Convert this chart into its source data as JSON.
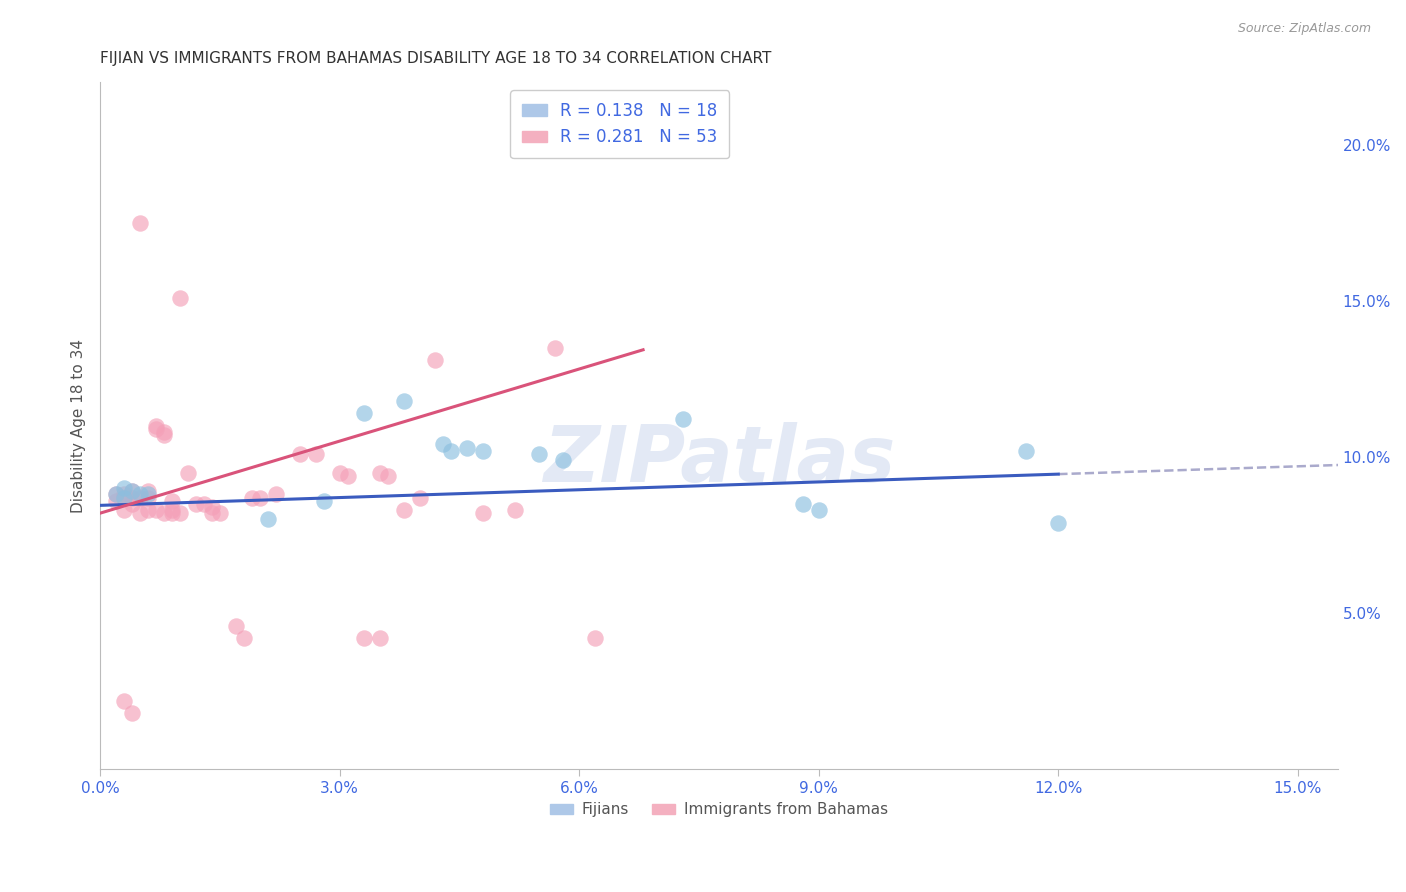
{
  "title": "FIJIAN VS IMMIGRANTS FROM BAHAMAS DISABILITY AGE 18 TO 34 CORRELATION CHART",
  "source": "Source: ZipAtlas.com",
  "ylabel": "Disability Age 18 to 34",
  "xlim": [
    0.0,
    0.155
  ],
  "ylim": [
    0.0,
    0.22
  ],
  "xtick_vals": [
    0.0,
    0.03,
    0.06,
    0.09,
    0.12,
    0.15
  ],
  "ytick_vals": [
    0.05,
    0.1,
    0.15,
    0.2
  ],
  "blue_scatter_color": "#8bbfdf",
  "pink_scatter_color": "#f4a0b8",
  "blue_line_color": "#3a5bbf",
  "pink_line_color": "#d9537a",
  "dash_line_color": "#aaaacc",
  "legend_label1": "Fijians",
  "legend_label2": "Immigrants from Bahamas",
  "watermark": "ZIPatlas",
  "background_color": "#ffffff",
  "grid_color": "#dddddd",
  "fijians_x": [
    0.002,
    0.003,
    0.003,
    0.004,
    0.005,
    0.006,
    0.021,
    0.028,
    0.033,
    0.038,
    0.043,
    0.044,
    0.046,
    0.048,
    0.055,
    0.058,
    0.073,
    0.088,
    0.09,
    0.116,
    0.12
  ],
  "fijians_y": [
    0.088,
    0.09,
    0.087,
    0.089,
    0.088,
    0.088,
    0.08,
    0.086,
    0.114,
    0.118,
    0.104,
    0.102,
    0.103,
    0.102,
    0.101,
    0.099,
    0.112,
    0.085,
    0.083,
    0.102,
    0.079
  ],
  "bahamas_x": [
    0.002,
    0.002,
    0.003,
    0.003,
    0.003,
    0.004,
    0.004,
    0.004,
    0.005,
    0.005,
    0.005,
    0.006,
    0.006,
    0.006,
    0.007,
    0.007,
    0.007,
    0.008,
    0.008,
    0.008,
    0.009,
    0.009,
    0.009,
    0.01,
    0.01,
    0.011,
    0.012,
    0.013,
    0.014,
    0.014,
    0.015,
    0.017,
    0.018,
    0.019,
    0.02,
    0.022,
    0.025,
    0.027,
    0.03,
    0.031,
    0.033,
    0.035,
    0.036,
    0.038,
    0.04,
    0.042,
    0.048,
    0.052,
    0.057,
    0.062,
    0.003,
    0.004,
    0.035
  ],
  "bahamas_y": [
    0.088,
    0.086,
    0.088,
    0.087,
    0.083,
    0.089,
    0.087,
    0.085,
    0.175,
    0.082,
    0.087,
    0.083,
    0.087,
    0.089,
    0.11,
    0.109,
    0.083,
    0.108,
    0.107,
    0.082,
    0.083,
    0.086,
    0.082,
    0.082,
    0.151,
    0.095,
    0.085,
    0.085,
    0.084,
    0.082,
    0.082,
    0.046,
    0.042,
    0.087,
    0.087,
    0.088,
    0.101,
    0.101,
    0.095,
    0.094,
    0.042,
    0.095,
    0.094,
    0.083,
    0.087,
    0.131,
    0.082,
    0.083,
    0.135,
    0.042,
    0.022,
    0.018,
    0.042
  ]
}
